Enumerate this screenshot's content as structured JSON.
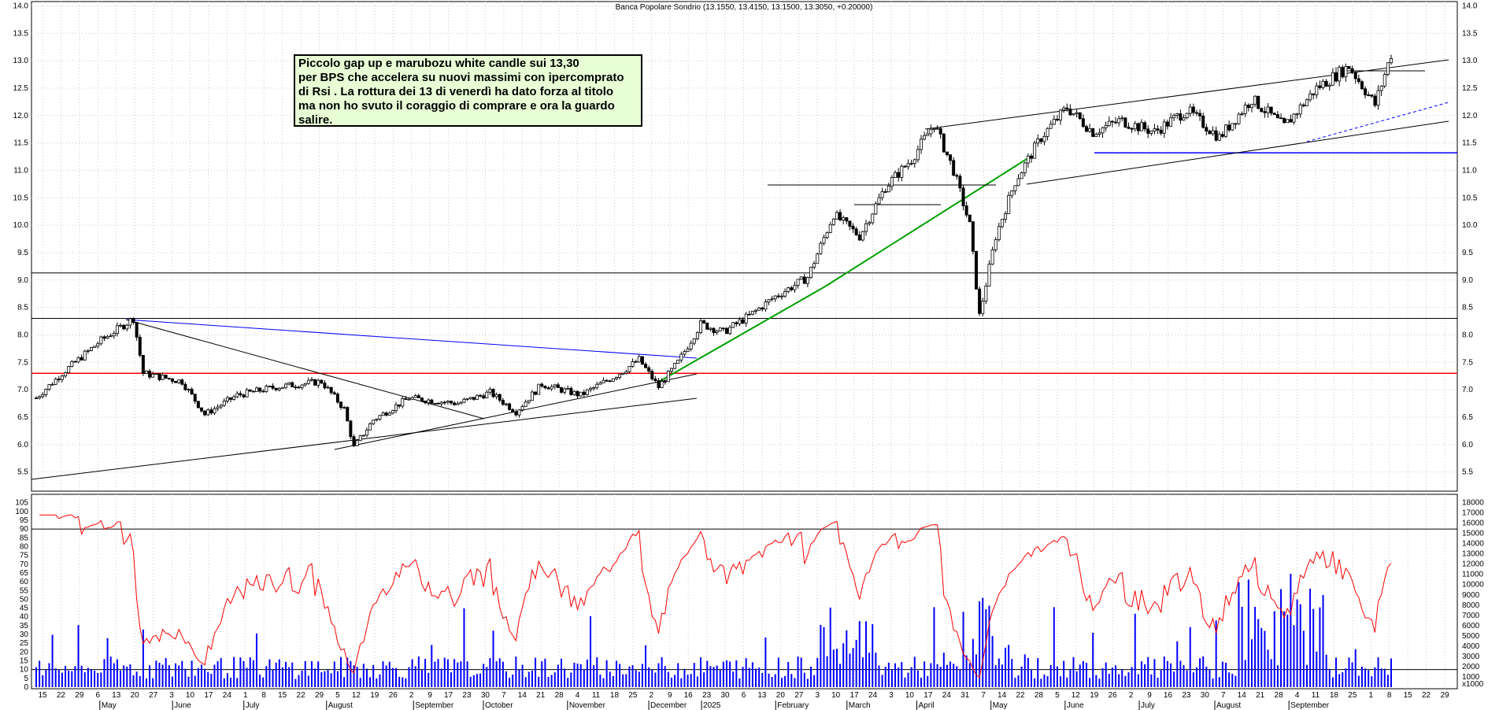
{
  "chart_data": {
    "type": "candlestick",
    "title": "Banca Popolare Sondrio (13.1550, 13.4150, 13.1500, 13.3050, +0.20000)",
    "annotation": "Piccolo gap up e marubozu white candle sui 13,30\nper BPS che accelera su nuovi massimi con ipercomprato\ndi Rsi . La rottura dei 13 di venerdì ha dato forza al titolo\nma non ho svuto il coraggio di comprare e ora la guardo\nsalire.",
    "price_axis": {
      "ticks": [
        5.5,
        6.0,
        6.5,
        7.0,
        7.5,
        8.0,
        8.5,
        9.0,
        9.5,
        10.0,
        10.5,
        11.0,
        11.5,
        12.0,
        12.5,
        13.0,
        13.5,
        14.0
      ],
      "tick_labels": [
        "5.5",
        "6.0",
        "6.5",
        "7.0",
        "7.5",
        "8.0",
        "8.5",
        "9.0",
        "9.5",
        "10.0",
        "10.5",
        "11.0",
        "11.5",
        "12.0",
        "12.5",
        "13.0",
        "13.5",
        "14.0"
      ],
      "range": [
        5.15,
        14.05
      ]
    },
    "rsi_axis": {
      "ticks": [
        0,
        5,
        10,
        15,
        20,
        25,
        30,
        35,
        40,
        45,
        50,
        55,
        60,
        65,
        70,
        75,
        80,
        85,
        90,
        95,
        100,
        105
      ],
      "tick_labels": [
        "0",
        "5",
        "10",
        "15",
        "20",
        "25",
        "30",
        "35",
        "40",
        "45",
        "50",
        "55",
        "60",
        "65",
        "70",
        "75",
        "80",
        "85",
        "90",
        "95",
        "100",
        "105"
      ],
      "range": [
        0,
        108
      ]
    },
    "volume_axis": {
      "ticks": [
        1000,
        2000,
        3000,
        4000,
        5000,
        6000,
        7000,
        8000,
        9000,
        10000,
        11000,
        12000,
        13000,
        14000,
        15000,
        16000,
        17000,
        18000
      ],
      "tick_labels": [
        "1000",
        "2000",
        "3000",
        "4000",
        "5000",
        "6000",
        "7000",
        "8000",
        "9000",
        "10000",
        "11000",
        "12000",
        "13000",
        "14000",
        "15000",
        "16000",
        "17000",
        "18000"
      ],
      "unit_label": "x1000",
      "range": [
        0,
        18500
      ]
    },
    "date_labels": [
      "15",
      "22",
      "29",
      "6",
      "13",
      "20",
      "27",
      "3",
      "10",
      "17",
      "24",
      "1",
      "8",
      "15",
      "22",
      "29",
      "5",
      "12",
      "19",
      "26",
      "2",
      "9",
      "17",
      "23",
      "30",
      "7",
      "14",
      "21",
      "28",
      "4",
      "11",
      "18",
      "25",
      "2",
      "9",
      "16",
      "23",
      "30",
      "6",
      "13",
      "20",
      "27",
      "3",
      "10",
      "17",
      "24",
      "3",
      "10",
      "17",
      "24",
      "31",
      "7",
      "14",
      "22",
      "28",
      "5",
      "12",
      "19",
      "26",
      "2",
      "9",
      "16",
      "23",
      "30",
      "7",
      "14",
      "21",
      "28",
      "4",
      "11",
      "18",
      "25",
      "1",
      "8",
      "15",
      "22",
      "29"
    ],
    "month_labels": [
      "May",
      "June",
      "July",
      "August",
      "September",
      "October",
      "November",
      "December",
      "2025",
      "February",
      "March",
      "April",
      "May",
      "June",
      "July",
      "August",
      "September"
    ],
    "horizontal_levels": [
      {
        "value": 9.13,
        "color": "#000000"
      },
      {
        "value": 8.3,
        "color": "#000000"
      },
      {
        "value": 7.3,
        "color": "#ff0000"
      },
      {
        "value": 11.32,
        "color": "#0000ff"
      }
    ],
    "rsi_levels": [
      90,
      10
    ],
    "key_prices": {
      "start": 6.85,
      "may_high": 8.3,
      "august_low": 5.95,
      "december_breakout": 7.5,
      "march_high": 11.85,
      "april_low": 8.35,
      "may_high_2025": 12.15,
      "last_close": 13.305
    },
    "colors": {
      "up_candle": "#ffffff",
      "down_candle": "#000000",
      "rsi_line": "#ff0000",
      "volume_bars": "#0000ff",
      "green_trendline": "#00a000",
      "blue_trendline": "#0000ff",
      "support_red": "#ff0000"
    }
  }
}
